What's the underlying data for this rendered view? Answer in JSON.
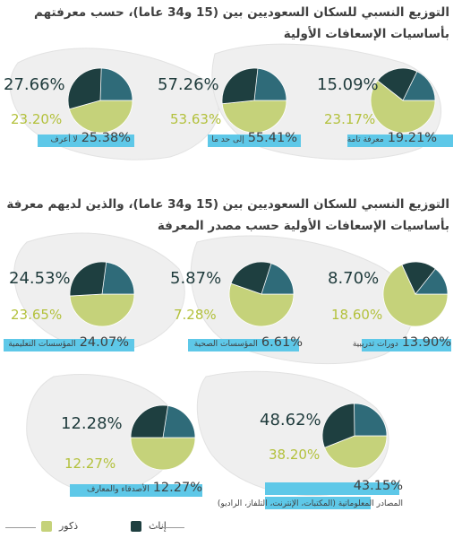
{
  "titles": {
    "section1": "التوزيع النسبي للسكان السعوديين بين (15 و34 عاما)، حسب معرفتهم بأساسيات الإسعافات الأولية",
    "section2": "التوزيع النسبي للسكان السعوديين بين (15 و34 عاما)، والذين لديهم معرفة بأساسيات الإسعافات الأولية حسب مصدر المعرفة"
  },
  "colors": {
    "female": "#2f6b79",
    "female_dark": "#1e3f40",
    "male": "#c5d27a",
    "highlight": "#5ec8e8",
    "text": "#3f3f3f"
  },
  "legend": {
    "female": "إناث",
    "male": "ذكور"
  },
  "chart_data": [
    {
      "type": "pie",
      "section": 1,
      "category": "معرفة تامة",
      "total": "19.21%",
      "series": [
        {
          "name": "إناث",
          "value": 15.09,
          "label": "15.09%"
        },
        {
          "name": "ذكور",
          "value": 23.17,
          "label": "23.17%"
        }
      ]
    },
    {
      "type": "pie",
      "section": 1,
      "category": "إلى حد ما",
      "total": "55.41%",
      "series": [
        {
          "name": "إناث",
          "value": 57.26,
          "label": "57.26%"
        },
        {
          "name": "ذكور",
          "value": 53.63,
          "label": "53.63%"
        }
      ]
    },
    {
      "type": "pie",
      "section": 1,
      "category": "لا أعرف",
      "total": "25.38%",
      "series": [
        {
          "name": "إناث",
          "value": 27.66,
          "label": "27.66%"
        },
        {
          "name": "ذكور",
          "value": 23.2,
          "label": "23.20%"
        }
      ]
    },
    {
      "type": "pie",
      "section": 2,
      "category": "دورات تدريبية",
      "total": "13.90%",
      "series": [
        {
          "name": "إناث",
          "value": 8.7,
          "label": "8.70%"
        },
        {
          "name": "ذكور",
          "value": 18.6,
          "label": "18.60%"
        }
      ]
    },
    {
      "type": "pie",
      "section": 2,
      "category": "المؤسسات الصحية",
      "total": "6.61%",
      "series": [
        {
          "name": "إناث",
          "value": 5.87,
          "label": "5.87%"
        },
        {
          "name": "ذكور",
          "value": 7.28,
          "label": "7.28%"
        }
      ]
    },
    {
      "type": "pie",
      "section": 2,
      "category": "المؤسسات التعليمية",
      "total": "24.07%",
      "series": [
        {
          "name": "إناث",
          "value": 24.53,
          "label": "24.53%"
        },
        {
          "name": "ذكور",
          "value": 23.65,
          "label": "23.65%"
        }
      ]
    },
    {
      "type": "pie",
      "section": 2,
      "category": "المصادر المعلوماتية (المكتبات، الإنترنت، التلفاز، الراديو)",
      "total": "43.15%",
      "series": [
        {
          "name": "إناث",
          "value": 48.62,
          "label": "48.62%"
        },
        {
          "name": "ذكور",
          "value": 38.2,
          "label": "38.20%"
        }
      ]
    },
    {
      "type": "pie",
      "section": 2,
      "category": "الأصدقاء والمعارف",
      "total": "12.27%",
      "series": [
        {
          "name": "إناث",
          "value": 12.28,
          "label": "12.28%"
        },
        {
          "name": "ذكور",
          "value": 12.27,
          "label": "12.27%"
        }
      ]
    }
  ]
}
